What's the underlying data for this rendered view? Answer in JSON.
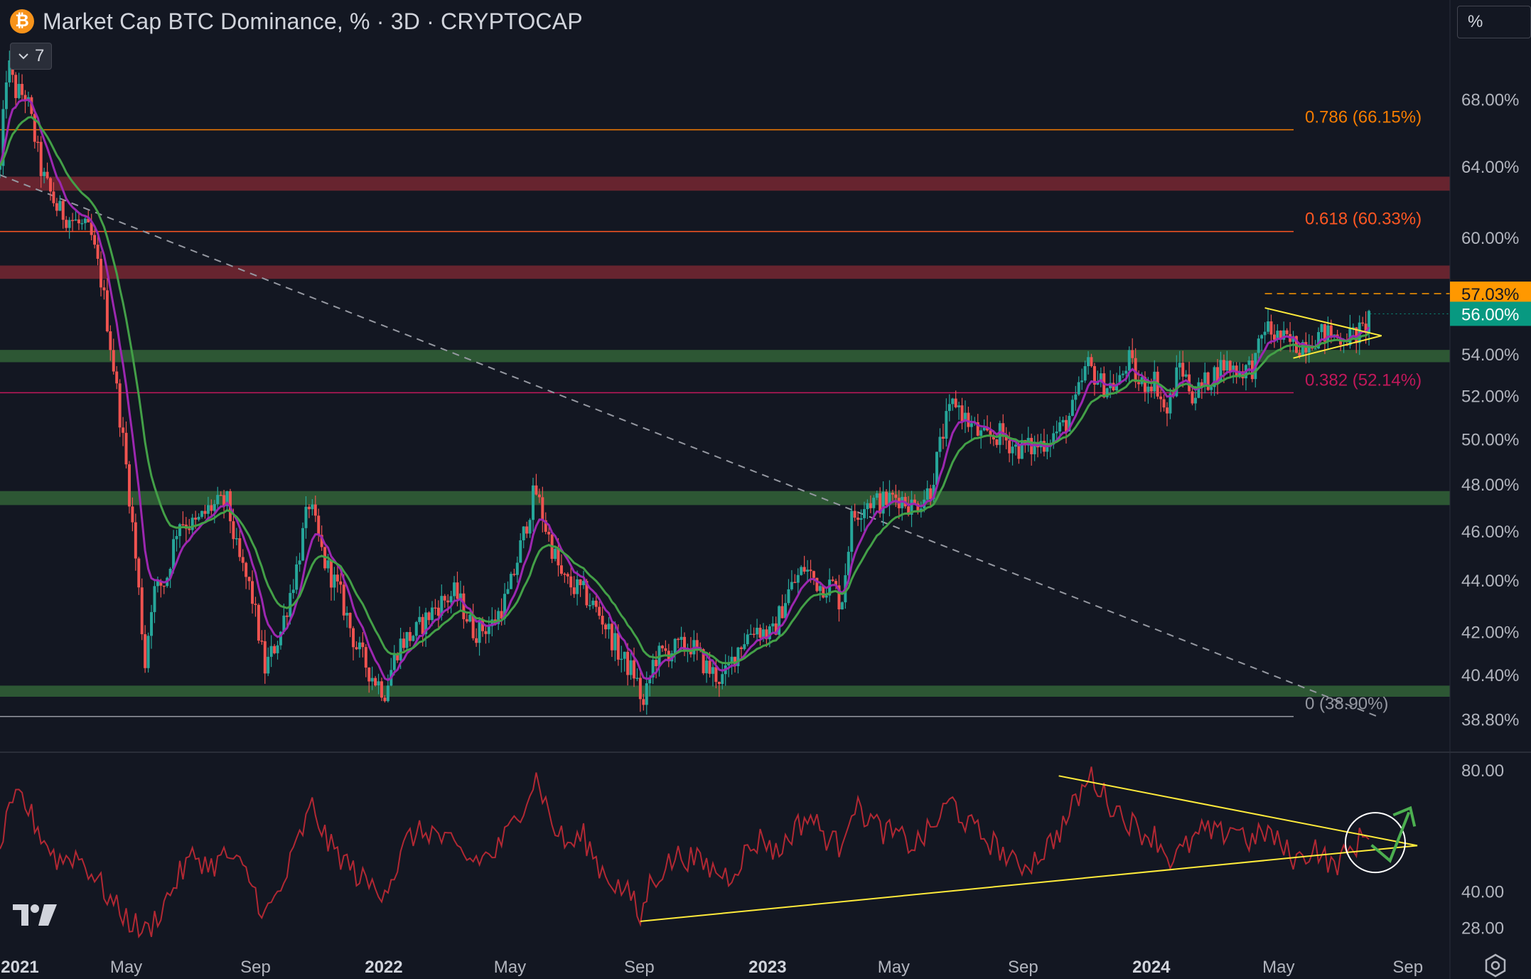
{
  "header": {
    "title": "Market Cap BTC Dominance, % · 3D · CRYPTOCAP",
    "symbol_icon": "bitcoin-icon",
    "indicator_count": "7"
  },
  "scale_mode": "%",
  "colors": {
    "background": "#131722",
    "up_candle": "#26a69a",
    "down_candle": "#ef5350",
    "ema_fast": "#9c27b0",
    "ema_slow": "#43a047",
    "support_zone": "#2e5b36",
    "resistance_zone": "#6b2530",
    "fib_0786": "#f57c00",
    "fib_0618": "#ff5722",
    "fib_0382": "#c2185b",
    "fib_0": "#9598a1",
    "trendline": "#ffeb3b",
    "rsi_line": "#b22833",
    "current_price_tag": "#089981",
    "high_price_tag": "#ff9800",
    "arrow": "#4caf50"
  },
  "chart_data": [
    {
      "type": "candlestick",
      "title": "Market Cap BTC Dominance, % · 3D · CRYPTOCAP",
      "y_axis": {
        "scale": "log",
        "ticks": [
          "68.00%",
          "64.00%",
          "60.00%",
          "54.00%",
          "52.00%",
          "50.00%",
          "48.00%",
          "46.00%",
          "44.00%",
          "42.00%",
          "40.40%",
          "38.80%"
        ],
        "ylim": [
          38.1,
          72.5
        ]
      },
      "x_axis": {
        "ticks": [
          {
            "label": "2021",
            "bold": true
          },
          {
            "label": "May",
            "bold": false
          },
          {
            "label": "Sep",
            "bold": false
          },
          {
            "label": "2022",
            "bold": true
          },
          {
            "label": "May",
            "bold": false
          },
          {
            "label": "Sep",
            "bold": false
          },
          {
            "label": "2023",
            "bold": true
          },
          {
            "label": "May",
            "bold": false
          },
          {
            "label": "Sep",
            "bold": false
          },
          {
            "label": "2024",
            "bold": true
          },
          {
            "label": "May",
            "bold": false
          },
          {
            "label": "Sep",
            "bold": false
          }
        ],
        "range": [
          "2021-01-01",
          "2024-09-14"
        ]
      },
      "price_path": [
        [
          "2021-01-01",
          63.8
        ],
        [
          "2021-01-08",
          70.5
        ],
        [
          "2021-01-15",
          68.5
        ],
        [
          "2021-01-26",
          68.2
        ],
        [
          "2021-02-10",
          63.5
        ],
        [
          "2021-02-25",
          61.5
        ],
        [
          "2021-03-15",
          60.8
        ],
        [
          "2021-03-28",
          60.2
        ],
        [
          "2021-04-08",
          57.5
        ],
        [
          "2021-04-20",
          53.0
        ],
        [
          "2021-05-03",
          48.0
        ],
        [
          "2021-05-12",
          44.0
        ],
        [
          "2021-05-19",
          40.8
        ],
        [
          "2021-05-26",
          43.5
        ],
        [
          "2021-06-08",
          44.0
        ],
        [
          "2021-06-20",
          46.5
        ],
        [
          "2021-07-05",
          46.2
        ],
        [
          "2021-07-20",
          47.0
        ],
        [
          "2021-08-05",
          47.2
        ],
        [
          "2021-08-15",
          45.0
        ],
        [
          "2021-08-28",
          43.5
        ],
        [
          "2021-09-10",
          40.6
        ],
        [
          "2021-09-25",
          42.0
        ],
        [
          "2021-10-10",
          44.5
        ],
        [
          "2021-10-22",
          47.2
        ],
        [
          "2021-11-05",
          44.8
        ],
        [
          "2021-11-20",
          43.5
        ],
        [
          "2021-12-05",
          41.5
        ],
        [
          "2021-12-20",
          40.4
        ],
        [
          "2022-01-02",
          39.8
        ],
        [
          "2022-01-15",
          41.5
        ],
        [
          "2022-02-01",
          42.0
        ],
        [
          "2022-02-20",
          43.0
        ],
        [
          "2022-03-10",
          43.5
        ],
        [
          "2022-03-28",
          42.0
        ],
        [
          "2022-04-15",
          42.3
        ],
        [
          "2022-04-30",
          43.5
        ],
        [
          "2022-05-12",
          45.5
        ],
        [
          "2022-05-25",
          47.8
        ],
        [
          "2022-06-05",
          46.0
        ],
        [
          "2022-06-20",
          44.0
        ],
        [
          "2022-07-10",
          43.5
        ],
        [
          "2022-07-28",
          42.5
        ],
        [
          "2022-08-15",
          41.0
        ],
        [
          "2022-08-28",
          40.4
        ],
        [
          "2022-09-05",
          39.2
        ],
        [
          "2022-09-15",
          41.0
        ],
        [
          "2022-10-01",
          41.3
        ],
        [
          "2022-10-20",
          41.5
        ],
        [
          "2022-11-05",
          40.6
        ],
        [
          "2022-11-20",
          40.2
        ],
        [
          "2022-12-05",
          41.5
        ],
        [
          "2022-12-20",
          42.2
        ],
        [
          "2023-01-05",
          41.8
        ],
        [
          "2023-01-20",
          43.5
        ],
        [
          "2023-02-05",
          44.5
        ],
        [
          "2023-02-20",
          43.8
        ],
        [
          "2023-03-05",
          43.8
        ],
        [
          "2023-03-12",
          43.0
        ],
        [
          "2023-03-22",
          46.5
        ],
        [
          "2023-04-05",
          47.3
        ],
        [
          "2023-04-20",
          47.2
        ],
        [
          "2023-05-05",
          47.5
        ],
        [
          "2023-05-20",
          47.0
        ],
        [
          "2023-06-05",
          47.8
        ],
        [
          "2023-06-18",
          50.5
        ],
        [
          "2023-06-28",
          51.8
        ],
        [
          "2023-07-10",
          50.8
        ],
        [
          "2023-07-25",
          50.0
        ],
        [
          "2023-08-10",
          50.2
        ],
        [
          "2023-08-25",
          49.6
        ],
        [
          "2023-09-10",
          49.6
        ],
        [
          "2023-09-25",
          50.0
        ],
        [
          "2023-10-10",
          50.6
        ],
        [
          "2023-10-20",
          51.5
        ],
        [
          "2023-11-01",
          53.5
        ],
        [
          "2023-11-15",
          52.5
        ],
        [
          "2023-12-01",
          52.5
        ],
        [
          "2023-12-10",
          53.8
        ],
        [
          "2023-12-20",
          52.5
        ],
        [
          "2024-01-05",
          52.8
        ],
        [
          "2024-01-15",
          51.0
        ],
        [
          "2024-01-28",
          53.5
        ],
        [
          "2024-02-10",
          52.0
        ],
        [
          "2024-02-25",
          52.8
        ],
        [
          "2024-03-10",
          53.5
        ],
        [
          "2024-03-25",
          53.2
        ],
        [
          "2024-04-08",
          53.4
        ],
        [
          "2024-04-18",
          55.4
        ],
        [
          "2024-04-25",
          55.0
        ],
        [
          "2024-05-08",
          54.6
        ],
        [
          "2024-05-20",
          54.4
        ],
        [
          "2024-06-01",
          54.8
        ],
        [
          "2024-06-15",
          55.0
        ],
        [
          "2024-06-28",
          54.8
        ],
        [
          "2024-07-10",
          54.9
        ],
        [
          "2024-07-20",
          55.1
        ],
        [
          "2024-07-27",
          56.0
        ]
      ],
      "series": [
        {
          "name": "EMA fast",
          "color": "#9c27b0"
        },
        {
          "name": "EMA slow",
          "color": "#43a047"
        }
      ],
      "zones": [
        {
          "kind": "resistance",
          "from": 62.6,
          "to": 63.4
        },
        {
          "kind": "resistance",
          "from": 57.8,
          "to": 58.5
        },
        {
          "kind": "support",
          "from": 53.6,
          "to": 54.2
        },
        {
          "kind": "support",
          "from": 47.1,
          "to": 47.7
        },
        {
          "kind": "support",
          "from": 39.6,
          "to": 40.0
        }
      ],
      "fib_levels": [
        {
          "label": "0.786 (66.15%)",
          "value": 66.15,
          "color": "#f57c00"
        },
        {
          "label": "0.618 (60.33%)",
          "value": 60.33,
          "color": "#ff5722"
        },
        {
          "label": "0.382 (52.14%)",
          "value": 52.14,
          "color": "#c2185b"
        },
        {
          "label": "0 (38.90%)",
          "value": 38.9,
          "color": "#9598a1"
        }
      ],
      "annotations": {
        "recent_high": {
          "value": 57.03,
          "label": "57.03%",
          "start": "2024-04-18"
        },
        "current": {
          "value": 56.0,
          "label": "56.00%"
        },
        "downtrend_line": {
          "from": [
            "2021-01-01",
            63.5
          ],
          "to": [
            "2024-08-03",
            38.9
          ]
        },
        "triangle_upper": {
          "from": [
            "2024-04-18",
            56.3
          ],
          "to": [
            "2024-08-07",
            54.9
          ]
        },
        "triangle_lower": {
          "from": [
            "2024-05-15",
            53.8
          ],
          "to": [
            "2024-08-07",
            54.9
          ]
        }
      }
    },
    {
      "type": "line",
      "title": "",
      "y_axis": {
        "ticks": [
          "80.00",
          "40.00",
          "28.00"
        ],
        "ylim": [
          22,
          83
        ]
      },
      "values": [
        [
          "2021-01-01",
          55
        ],
        [
          "2021-01-10",
          65
        ],
        [
          "2021-01-20",
          72
        ],
        [
          "2021-02-10",
          58
        ],
        [
          "2021-02-25",
          50
        ],
        [
          "2021-03-15",
          52
        ],
        [
          "2021-04-01",
          45
        ],
        [
          "2021-04-20",
          35
        ],
        [
          "2021-05-05",
          30
        ],
        [
          "2021-05-20",
          26
        ],
        [
          "2021-06-05",
          35
        ],
        [
          "2021-06-20",
          45
        ],
        [
          "2021-07-05",
          52
        ],
        [
          "2021-07-20",
          48
        ],
        [
          "2021-08-05",
          52
        ],
        [
          "2021-08-25",
          45
        ],
        [
          "2021-09-10",
          32
        ],
        [
          "2021-09-25",
          40
        ],
        [
          "2021-10-10",
          55
        ],
        [
          "2021-10-25",
          68
        ],
        [
          "2021-11-10",
          55
        ],
        [
          "2021-11-25",
          50
        ],
        [
          "2021-12-10",
          44
        ],
        [
          "2021-12-28",
          40
        ],
        [
          "2022-01-10",
          45
        ],
        [
          "2022-01-25",
          58
        ],
        [
          "2022-02-15",
          60
        ],
        [
          "2022-03-05",
          55
        ],
        [
          "2022-03-25",
          50
        ],
        [
          "2022-04-15",
          52
        ],
        [
          "2022-05-01",
          60
        ],
        [
          "2022-05-15",
          70
        ],
        [
          "2022-05-27",
          78
        ],
        [
          "2022-06-10",
          62
        ],
        [
          "2022-06-25",
          55
        ],
        [
          "2022-07-10",
          58
        ],
        [
          "2022-07-25",
          48
        ],
        [
          "2022-08-10",
          42
        ],
        [
          "2022-08-25",
          38
        ],
        [
          "2022-09-02",
          30
        ],
        [
          "2022-09-10",
          42
        ],
        [
          "2022-09-25",
          48
        ],
        [
          "2022-10-10",
          52
        ],
        [
          "2022-10-25",
          50
        ],
        [
          "2022-11-10",
          47
        ],
        [
          "2022-11-25",
          45
        ],
        [
          "2022-12-10",
          52
        ],
        [
          "2022-12-28",
          58
        ],
        [
          "2023-01-10",
          52
        ],
        [
          "2023-01-25",
          60
        ],
        [
          "2023-02-10",
          65
        ],
        [
          "2023-02-25",
          58
        ],
        [
          "2023-03-10",
          55
        ],
        [
          "2023-03-22",
          68
        ],
        [
          "2023-04-05",
          65
        ],
        [
          "2023-04-20",
          60
        ],
        [
          "2023-05-05",
          58
        ],
        [
          "2023-05-20",
          55
        ],
        [
          "2023-06-05",
          60
        ],
        [
          "2023-06-25",
          70
        ],
        [
          "2023-07-10",
          62
        ],
        [
          "2023-07-25",
          58
        ],
        [
          "2023-08-10",
          54
        ],
        [
          "2023-08-25",
          48
        ],
        [
          "2023-09-10",
          50
        ],
        [
          "2023-09-25",
          55
        ],
        [
          "2023-10-10",
          62
        ],
        [
          "2023-10-25",
          72
        ],
        [
          "2023-11-05",
          78
        ],
        [
          "2023-11-20",
          70
        ],
        [
          "2023-12-05",
          65
        ],
        [
          "2023-12-20",
          60
        ],
        [
          "2024-01-05",
          58
        ],
        [
          "2024-01-20",
          50
        ],
        [
          "2024-02-05",
          55
        ],
        [
          "2024-02-20",
          60
        ],
        [
          "2024-03-05",
          58
        ],
        [
          "2024-03-20",
          62
        ],
        [
          "2024-04-05",
          56
        ],
        [
          "2024-04-20",
          60
        ],
        [
          "2024-05-05",
          54
        ],
        [
          "2024-05-20",
          50
        ],
        [
          "2024-06-05",
          55
        ],
        [
          "2024-06-20",
          48
        ],
        [
          "2024-07-05",
          52
        ],
        [
          "2024-07-20",
          58
        ],
        [
          "2024-07-27",
          61
        ]
      ],
      "annotations": {
        "trendline_upper": {
          "from": [
            "2023-10-05",
            78
          ],
          "to": [
            "2024-09-10",
            55
          ]
        },
        "trendline_lower": {
          "from": [
            "2022-09-02",
            30
          ],
          "to": [
            "2024-09-10",
            55
          ]
        },
        "circle": {
          "center": [
            "2024-08-01",
            56
          ]
        },
        "arrow": {
          "from": [
            "2024-08-15",
            50
          ],
          "to": [
            "2024-09-02",
            66
          ]
        }
      }
    }
  ]
}
